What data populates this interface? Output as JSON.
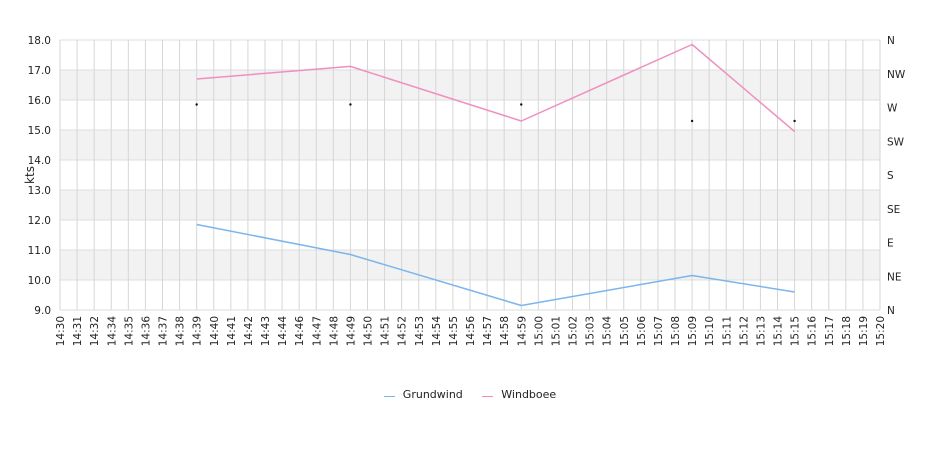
{
  "chart_data": {
    "type": "line",
    "ylabel": "kts",
    "ylim": [
      9.0,
      18.0
    ],
    "y_ticks": [
      "9.0",
      "10.0",
      "11.0",
      "12.0",
      "13.0",
      "14.0",
      "15.0",
      "16.0",
      "17.0",
      "18.0"
    ],
    "y2_ticks": [
      "N",
      "NE",
      "E",
      "SE",
      "S",
      "SW",
      "W",
      "NW",
      "N"
    ],
    "x_ticks": [
      "14:30",
      "14:31",
      "14:32",
      "14:34",
      "14:35",
      "14:36",
      "14:37",
      "14:38",
      "14:39",
      "14:40",
      "14:41",
      "14:42",
      "14:43",
      "14:44",
      "14:46",
      "14:47",
      "14:48",
      "14:49",
      "14:50",
      "14:51",
      "14:52",
      "14:53",
      "14:54",
      "14:55",
      "14:56",
      "14:57",
      "14:58",
      "14:59",
      "15:00",
      "15:01",
      "15:02",
      "15:03",
      "15:04",
      "15:05",
      "15:06",
      "15:07",
      "15:08",
      "15:09",
      "15:10",
      "15:11",
      "15:12",
      "15:13",
      "15:14",
      "15:15",
      "15:16",
      "15:17",
      "15:18",
      "15:19",
      "15:20"
    ],
    "grid": true,
    "legend_position": "bottom-center",
    "series": [
      {
        "name": "Grundwind",
        "color": "#7cb5ec",
        "x": [
          "14:39",
          "14:49",
          "14:59",
          "15:09",
          "15:15"
        ],
        "values": [
          11.85,
          10.85,
          9.15,
          10.15,
          9.6
        ]
      },
      {
        "name": "Windboee",
        "color": "#f08fbf",
        "x": [
          "14:39",
          "14:49",
          "14:59",
          "15:09",
          "15:15"
        ],
        "values": [
          16.7,
          17.12,
          15.3,
          17.85,
          14.95
        ]
      }
    ],
    "direction_markers": {
      "x": [
        "14:39",
        "14:49",
        "14:59",
        "15:09",
        "15:15"
      ],
      "values": [
        15.85,
        15.85,
        15.85,
        15.3,
        15.3
      ]
    }
  }
}
